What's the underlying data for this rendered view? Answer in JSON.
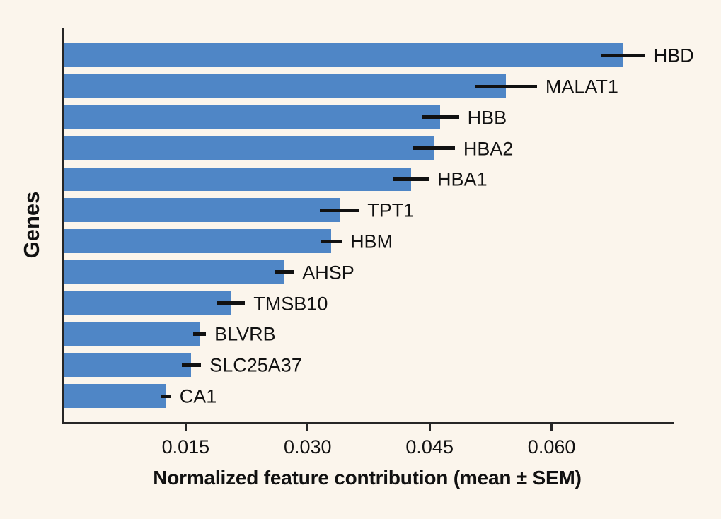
{
  "figure": {
    "background_color": "#FBF5EC",
    "bar_color": "#4F86C6",
    "error_bar_color": "#111111",
    "axis_color": "#262626"
  },
  "chart_data": {
    "type": "bar",
    "orientation": "horizontal",
    "title": "",
    "xlabel": "Normalized feature contribution (mean ± SEM)",
    "ylabel": "Genes",
    "categories": [
      "HBD",
      "MALAT1",
      "HBB",
      "HBA2",
      "HBA1",
      "TPT1",
      "HBM",
      "AHSP",
      "TMSB10",
      "BLVRB",
      "SLC25A37",
      "CA1"
    ],
    "values": [
      0.0688,
      0.0544,
      0.0463,
      0.0455,
      0.0427,
      0.0339,
      0.0329,
      0.0271,
      0.0206,
      0.0167,
      0.0157,
      0.0126
    ],
    "errors_sem": [
      0.0027,
      0.0038,
      0.0023,
      0.0026,
      0.0022,
      0.0024,
      0.0013,
      0.0012,
      0.0017,
      0.0008,
      0.0012,
      0.0006
    ],
    "xlim": [
      0,
      0.075
    ],
    "x_ticks": [
      0.015,
      0.03,
      0.045,
      0.06
    ],
    "x_tick_labels": [
      "0.015",
      "0.030",
      "0.045",
      "0.060"
    ],
    "grid": false,
    "legend": null
  }
}
